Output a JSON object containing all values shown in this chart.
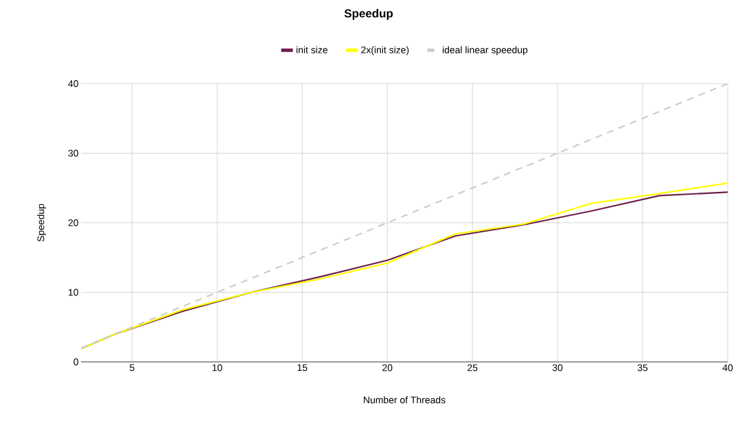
{
  "chart_data": {
    "type": "line",
    "title": "Speedup",
    "xlabel": "Number of Threads",
    "ylabel": "Speedup",
    "xlim": [
      2,
      40
    ],
    "ylim": [
      0,
      40
    ],
    "xticks": [
      5,
      10,
      15,
      20,
      25,
      30,
      35,
      40
    ],
    "yticks": [
      0,
      10,
      20,
      30,
      40
    ],
    "grid": true,
    "legend": "top",
    "marker": "none",
    "series": [
      {
        "name": "init size",
        "color": "#6e1e4a",
        "line_style": "solid",
        "x": [
          2,
          4,
          8,
          12,
          16,
          20,
          24,
          28,
          32,
          36,
          40
        ],
        "values": [
          1.9,
          4.0,
          7.3,
          10.0,
          12.2,
          14.6,
          18.1,
          19.7,
          21.7,
          23.9,
          24.4
        ]
      },
      {
        "name": "2x(init size)",
        "color": "#ffff00",
        "line_style": "solid",
        "x": [
          2,
          4,
          8,
          12,
          16,
          20,
          24,
          28,
          32,
          36,
          40
        ],
        "values": [
          1.9,
          4.0,
          7.5,
          10.0,
          11.9,
          14.2,
          18.4,
          19.8,
          22.8,
          24.2,
          25.7
        ]
      },
      {
        "name": "ideal linear speedup",
        "color": "#cccccc",
        "line_style": "dashed",
        "x": [
          2,
          40
        ],
        "values": [
          2,
          40
        ]
      }
    ]
  }
}
